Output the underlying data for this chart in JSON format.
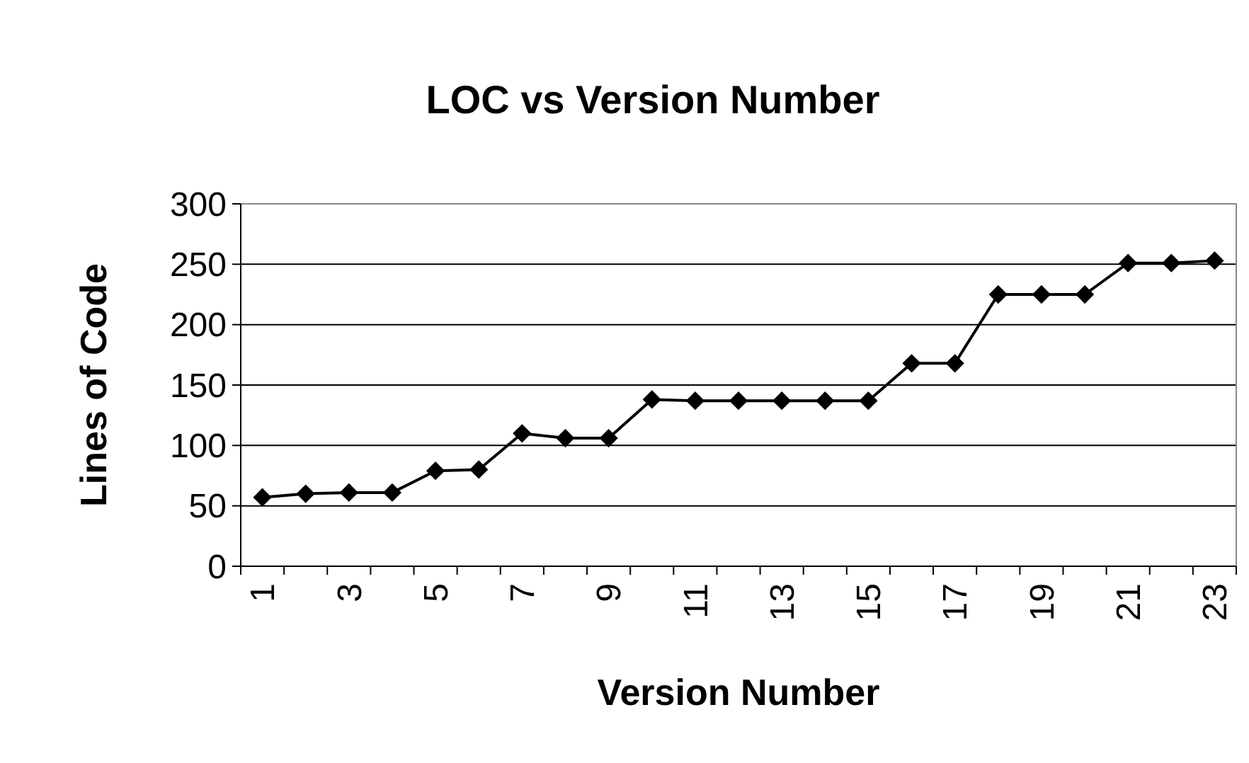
{
  "chart_data": {
    "type": "line",
    "title": "LOC vs Version Number",
    "xlabel": "Version Number",
    "ylabel": "Lines of Code",
    "categories": [
      "1",
      null,
      "3",
      null,
      "5",
      null,
      "7",
      null,
      "9",
      null,
      "11",
      null,
      "13",
      null,
      "15",
      null,
      "17",
      null,
      "19",
      null,
      "21",
      null,
      "23"
    ],
    "series": [
      {
        "color": "#000000",
        "values": [
          57,
          60,
          61,
          61,
          79,
          80,
          110,
          106,
          106,
          138,
          137,
          137,
          137,
          137,
          137,
          168,
          168,
          225,
          225,
          225,
          251,
          251,
          253
        ]
      }
    ],
    "ylim": [
      0,
      300
    ],
    "yticks": [
      0,
      50,
      100,
      150,
      200,
      250,
      300
    ],
    "grid": "y",
    "marker": "diamond",
    "line_style": "solid"
  }
}
